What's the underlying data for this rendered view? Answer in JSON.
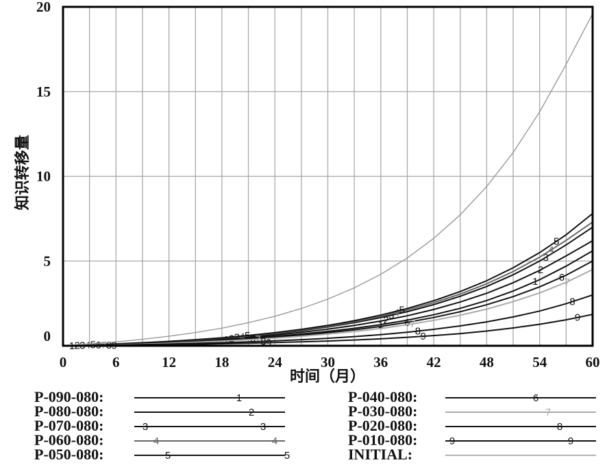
{
  "chart_data": {
    "type": "line",
    "xlabel": "时间（月）",
    "ylabel": "知识转移量",
    "xlim": [
      0,
      60
    ],
    "ylim": [
      0,
      20
    ],
    "x_ticks": [
      "0",
      "6",
      "12",
      "18",
      "24",
      "30",
      "36",
      "42",
      "48",
      "54",
      "60"
    ],
    "y_ticks": [
      "0",
      "5",
      "10",
      "15",
      "20"
    ],
    "grid": true,
    "x": [
      0,
      3,
      6,
      9,
      12,
      15,
      18,
      21,
      24,
      27,
      30,
      33,
      36,
      39,
      42,
      45,
      48,
      51,
      54,
      57,
      60
    ],
    "series": [
      {
        "name": "P-090-080:",
        "marker": "1",
        "color": "#111111",
        "values": [
          0,
          0.03,
          0.08,
          0.13,
          0.19,
          0.26,
          0.34,
          0.44,
          0.55,
          0.69,
          0.85,
          1.03,
          1.25,
          1.51,
          1.83,
          2.21,
          2.67,
          3.23,
          3.9,
          4.7,
          5.6
        ]
      },
      {
        "name": "P-080-080:",
        "marker": "2",
        "color": "#111111",
        "values": [
          0,
          0.04,
          0.09,
          0.15,
          0.22,
          0.3,
          0.39,
          0.5,
          0.63,
          0.79,
          0.98,
          1.2,
          1.46,
          1.77,
          2.14,
          2.58,
          3.1,
          3.72,
          4.45,
          5.3,
          6.2
        ]
      },
      {
        "name": "P-070-080:",
        "marker": "3",
        "color": "#111111",
        "values": [
          0,
          0.04,
          0.1,
          0.16,
          0.24,
          0.33,
          0.43,
          0.56,
          0.71,
          0.89,
          1.11,
          1.36,
          1.66,
          2.01,
          2.43,
          2.92,
          3.5,
          4.19,
          5.0,
          5.95,
          7.0
        ]
      },
      {
        "name": "P-060-080:",
        "marker": "4",
        "color": "#666666",
        "values": [
          0,
          0.04,
          0.1,
          0.17,
          0.25,
          0.34,
          0.45,
          0.58,
          0.74,
          0.93,
          1.15,
          1.42,
          1.73,
          2.1,
          2.54,
          3.05,
          3.66,
          4.38,
          5.23,
          6.22,
          7.3
        ]
      },
      {
        "name": "P-050-080:",
        "marker": "5",
        "color": "#111111",
        "values": [
          0,
          0.05,
          0.11,
          0.18,
          0.26,
          0.36,
          0.47,
          0.61,
          0.77,
          0.97,
          1.2,
          1.48,
          1.81,
          2.2,
          2.66,
          3.2,
          3.84,
          4.6,
          5.5,
          6.55,
          7.8
        ]
      },
      {
        "name": "P-040-080:",
        "marker": "6",
        "color": "#111111",
        "values": [
          0,
          0.03,
          0.07,
          0.12,
          0.17,
          0.23,
          0.31,
          0.4,
          0.5,
          0.62,
          0.77,
          0.94,
          1.14,
          1.38,
          1.67,
          2.01,
          2.42,
          2.9,
          3.48,
          4.16,
          5.0
        ]
      },
      {
        "name": "P-030-080:",
        "marker": "7",
        "color": "#aaaaaa",
        "values": [
          0,
          0.03,
          0.06,
          0.1,
          0.15,
          0.21,
          0.28,
          0.36,
          0.45,
          0.56,
          0.69,
          0.84,
          1.02,
          1.24,
          1.5,
          1.8,
          2.16,
          2.6,
          3.12,
          3.74,
          4.5
        ]
      },
      {
        "name": "P-020-080:",
        "marker": "8",
        "color": "#111111",
        "values": [
          0,
          0.02,
          0.04,
          0.07,
          0.1,
          0.14,
          0.18,
          0.23,
          0.29,
          0.36,
          0.44,
          0.54,
          0.66,
          0.8,
          0.97,
          1.17,
          1.41,
          1.7,
          2.05,
          2.48,
          3.0
        ]
      },
      {
        "name": "P-010-080:",
        "marker": "9",
        "color": "#111111",
        "values": [
          0,
          0.01,
          0.03,
          0.05,
          0.07,
          0.09,
          0.12,
          0.15,
          0.19,
          0.23,
          0.28,
          0.34,
          0.41,
          0.5,
          0.6,
          0.72,
          0.87,
          1.05,
          1.27,
          1.53,
          1.85
        ]
      },
      {
        "name": "INITIAL:",
        "marker": "",
        "color": "#999999",
        "values": [
          0,
          0.11,
          0.23,
          0.38,
          0.56,
          0.78,
          1.04,
          1.36,
          1.74,
          2.2,
          2.75,
          3.42,
          4.22,
          5.18,
          6.34,
          7.73,
          9.4,
          11.4,
          13.8,
          16.6,
          19.6
        ]
      }
    ]
  }
}
